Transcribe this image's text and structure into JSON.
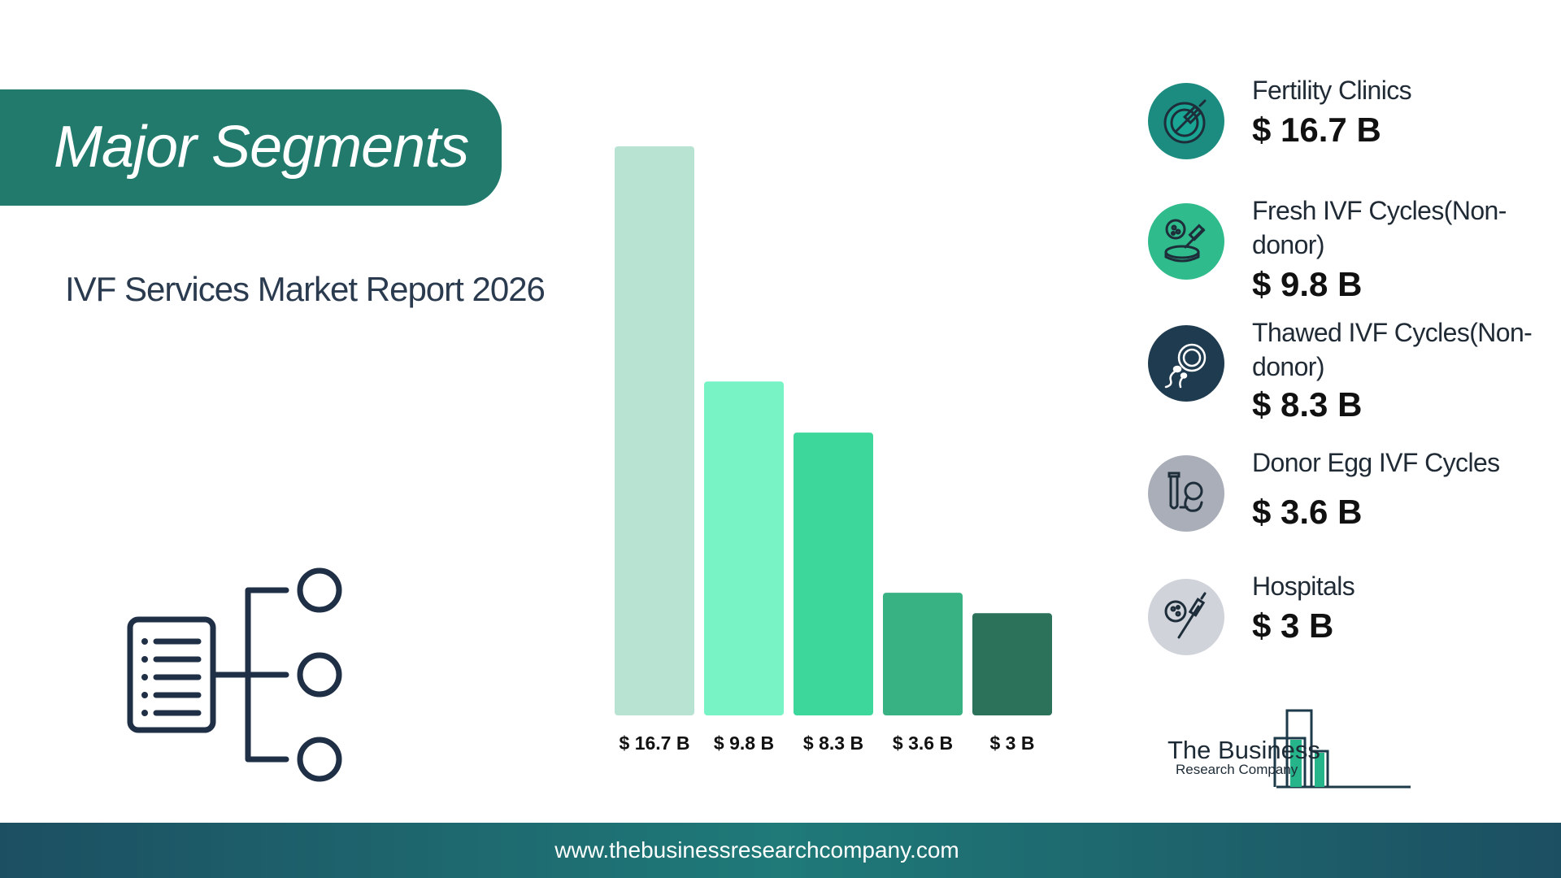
{
  "banner": {
    "title": "Major Segments"
  },
  "subtitle": "IVF Services Market Report 2026",
  "chart_data": {
    "type": "bar",
    "categories": [
      "Fertility Clinics",
      "Fresh IVF Cycles(Non-donor)",
      "Thawed IVF Cycles(Non-donor)",
      "Donor Egg IVF Cycles",
      "Hospitals"
    ],
    "values": [
      16.7,
      9.8,
      8.3,
      3.6,
      3.0
    ],
    "data_labels": [
      "$ 16.7 B",
      "$ 9.8 B",
      "$ 8.3 B",
      "$ 3.6 B",
      "$ 3 B"
    ],
    "colors": [
      "#b8e3d3",
      "#78f3c6",
      "#3dd69b",
      "#39b283",
      "#2c715a"
    ],
    "title": "",
    "xlabel": "",
    "ylabel": "",
    "ylim": [
      0,
      16.7
    ],
    "grid": false
  },
  "legend": [
    {
      "icon": "syringe-dish-icon",
      "name": "Fertility Clinics",
      "value": "$ 16.7 B",
      "color": "#1c8c80"
    },
    {
      "icon": "petri-dish-needle-icon",
      "name": "Fresh IVF Cycles(Non-donor)",
      "value": "$ 9.8 B",
      "color": "#2fbb8c"
    },
    {
      "icon": "sperm-egg-icon",
      "name": "Thawed IVF Cycles(Non-donor)",
      "value": "$ 8.3 B",
      "color": "#1f3b4f"
    },
    {
      "icon": "test-tube-embryo-icon",
      "name": "Donor Egg IVF Cycles",
      "value": "$ 3.6 B",
      "color": "#a9aeb8"
    },
    {
      "icon": "cell-pipette-icon",
      "name": "Hospitals",
      "value": "$ 3 B",
      "color": "#d0d3da"
    }
  ],
  "logo": {
    "line1": "The Business",
    "line2": "Research Company"
  },
  "footer": {
    "url": "www.thebusinessresearchcompany.com"
  }
}
